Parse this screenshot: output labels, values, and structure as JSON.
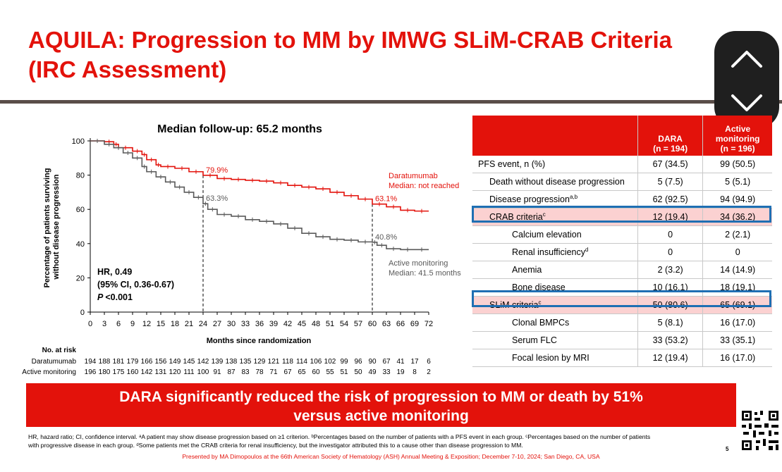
{
  "title": {
    "line1": "AQUILA: Progression to MM by IMWG SLiM-CRAB Criteria",
    "line2": "(IRC Assessment)"
  },
  "nav": {
    "up_icon": "chevron-up-icon",
    "down_icon": "chevron-down-icon"
  },
  "chart_data": {
    "type": "line",
    "title": "Median follow-up: 65.2 months",
    "xlabel": "Months since randomization",
    "ylabel": "Percentage of patients surviving without disease progression",
    "xlim": [
      0,
      72
    ],
    "ylim": [
      0,
      100
    ],
    "x_ticks": [
      0,
      3,
      6,
      9,
      12,
      15,
      18,
      21,
      24,
      27,
      30,
      33,
      36,
      39,
      42,
      45,
      48,
      51,
      54,
      57,
      60,
      63,
      66,
      69,
      72
    ],
    "y_ticks": [
      0,
      20,
      40,
      60,
      80,
      100
    ],
    "series": [
      {
        "name": "Daratumumab",
        "color": "#e3120b",
        "label_line1": "Daratumumab",
        "label_line2": "Median: not reached",
        "points": [
          [
            0,
            100
          ],
          [
            3,
            99.5
          ],
          [
            5,
            98
          ],
          [
            6,
            96
          ],
          [
            9,
            94
          ],
          [
            11,
            92
          ],
          [
            12,
            89
          ],
          [
            14,
            86
          ],
          [
            15,
            85
          ],
          [
            18,
            84
          ],
          [
            21,
            82
          ],
          [
            24,
            79.9
          ],
          [
            27,
            78
          ],
          [
            30,
            77.5
          ],
          [
            33,
            77
          ],
          [
            36,
            76.5
          ],
          [
            39,
            75.5
          ],
          [
            42,
            74
          ],
          [
            45,
            73
          ],
          [
            48,
            72
          ],
          [
            51,
            70
          ],
          [
            54,
            68
          ],
          [
            57,
            66
          ],
          [
            60,
            63.1
          ],
          [
            63,
            61.5
          ],
          [
            66,
            59.5
          ],
          [
            69,
            59
          ],
          [
            72,
            59
          ]
        ]
      },
      {
        "name": "Active monitoring",
        "color": "#5a5a5a",
        "label_line1": "Active monitoring",
        "label_line2": "Median: 41.5 months",
        "points": [
          [
            0,
            100
          ],
          [
            3,
            98
          ],
          [
            5,
            96
          ],
          [
            7,
            93
          ],
          [
            9,
            90
          ],
          [
            11,
            85
          ],
          [
            12,
            82
          ],
          [
            14,
            79
          ],
          [
            16,
            76
          ],
          [
            18,
            73
          ],
          [
            20,
            70
          ],
          [
            22,
            67
          ],
          [
            24,
            63.3
          ],
          [
            25,
            60
          ],
          [
            27,
            57
          ],
          [
            30,
            56
          ],
          [
            33,
            54
          ],
          [
            36,
            53
          ],
          [
            39,
            51.5
          ],
          [
            42,
            49
          ],
          [
            45,
            46
          ],
          [
            48,
            44
          ],
          [
            51,
            42.5
          ],
          [
            54,
            42
          ],
          [
            57,
            41
          ],
          [
            60,
            40.8
          ],
          [
            61,
            39
          ],
          [
            63,
            37
          ],
          [
            66,
            36.5
          ],
          [
            69,
            36.5
          ],
          [
            72,
            36.5
          ]
        ]
      }
    ],
    "annotations": [
      {
        "x": 24,
        "y": 79.9,
        "text": "79.9%",
        "color": "#e3120b"
      },
      {
        "x": 24,
        "y": 63.3,
        "text": "63.3%",
        "color": "#5a5a5a"
      },
      {
        "x": 60,
        "y": 63.1,
        "text": "63.1%",
        "color": "#e3120b"
      },
      {
        "x": 60,
        "y": 40.8,
        "text": "40.8%",
        "color": "#5a5a5a"
      }
    ],
    "reference_lines_x": [
      24,
      60
    ],
    "stats": {
      "hr": "HR, 0.49",
      "ci": "(95% CI, 0.36-0.67)",
      "p_italic": "P",
      "p_value": "<0.001"
    }
  },
  "risk_table": {
    "header": "No. at risk",
    "rows": [
      {
        "label": "Daratumumab",
        "values": [
          "194",
          "188",
          "181",
          "179",
          "166",
          "156",
          "149",
          "145",
          "142",
          "139",
          "138",
          "135",
          "129",
          "121",
          "118",
          "114",
          "106",
          "102",
          "99",
          "96",
          "90",
          "67",
          "41",
          "17",
          "6"
        ]
      },
      {
        "label": "Active monitoring",
        "values": [
          "196",
          "180",
          "175",
          "160",
          "142",
          "131",
          "120",
          "111",
          "100",
          "91",
          "87",
          "83",
          "78",
          "71",
          "67",
          "65",
          "60",
          "55",
          "51",
          "50",
          "49",
          "33",
          "19",
          "8",
          "2"
        ]
      }
    ]
  },
  "table": {
    "headers": [
      "",
      "DARA\n(n = 194)",
      "Active\nmonitoring\n(n = 196)"
    ],
    "header_dara_1": "DARA",
    "header_dara_2": "(n = 194)",
    "header_am_1": "Active",
    "header_am_2": "monitoring",
    "header_am_3": "(n = 196)",
    "rows": [
      {
        "label": "PFS event, n (%)",
        "sup": "",
        "dara": "67 (34.5)",
        "am": "99 (50.5)",
        "indent": 0,
        "highlight": false
      },
      {
        "label": "Death without disease progression",
        "sup": "",
        "dara": "5 (7.5)",
        "am": "5 (5.1)",
        "indent": 1,
        "highlight": false
      },
      {
        "label": "Disease progression",
        "sup": "a,b",
        "dara": "62 (92.5)",
        "am": "94 (94.9)",
        "indent": 1,
        "highlight": false
      },
      {
        "label": "CRAB criteria",
        "sup": "c",
        "dara": "12 (19.4)",
        "am": "34 (36.2)",
        "indent": 1,
        "highlight": true
      },
      {
        "label": "Calcium elevation",
        "sup": "",
        "dara": "0",
        "am": "2 (2.1)",
        "indent": 2,
        "highlight": false
      },
      {
        "label": "Renal insufficiency",
        "sup": "d",
        "dara": "0",
        "am": "0",
        "indent": 2,
        "highlight": false
      },
      {
        "label": "Anemia",
        "sup": "",
        "dara": "2 (3.2)",
        "am": "14 (14.9)",
        "indent": 2,
        "highlight": false
      },
      {
        "label": "Bone disease",
        "sup": "",
        "dara": "10 (16.1)",
        "am": "18 (19.1)",
        "indent": 2,
        "highlight": false
      },
      {
        "label": "SLiM criteria",
        "sup": "c",
        "dara": "50 (80.6)",
        "am": "65 (69.1)",
        "indent": 1,
        "highlight": true
      },
      {
        "label": "Clonal BMPCs",
        "sup": "",
        "dara": "5 (8.1)",
        "am": "16 (17.0)",
        "indent": 2,
        "highlight": false
      },
      {
        "label": "Serum FLC",
        "sup": "",
        "dara": "33 (53.2)",
        "am": "33 (35.1)",
        "indent": 2,
        "highlight": false
      },
      {
        "label": "Focal lesion by MRI",
        "sup": "",
        "dara": "12 (19.4)",
        "am": "16 (17.0)",
        "indent": 2,
        "highlight": false
      }
    ]
  },
  "banner": {
    "line1": "DARA significantly reduced the risk of progression to MM or death by 51%",
    "line2": "versus active monitoring"
  },
  "footnote": {
    "line1": "HR, hazard ratio; CI, confidence interval. ᵃA patient may show disease progression based on ≥1 criterion. ᵇPercentages based on the number of patients with a PFS event in each group. ᶜPercentages based on the number of patients",
    "line2": "with progressive disease in each group. ᵈSome patients met the CRAB criteria for renal insufficiency, but the investigator attributed this to a cause other than disease progression to MM."
  },
  "presented_by": "Presented by MA Dimopoulos at the 66th American Society of Hematology (ASH) Annual Meeting & Exposition; December 7-10, 2024; San Diego, CA, USA",
  "page_number": "5",
  "qr_icon": "qr-code-icon"
}
